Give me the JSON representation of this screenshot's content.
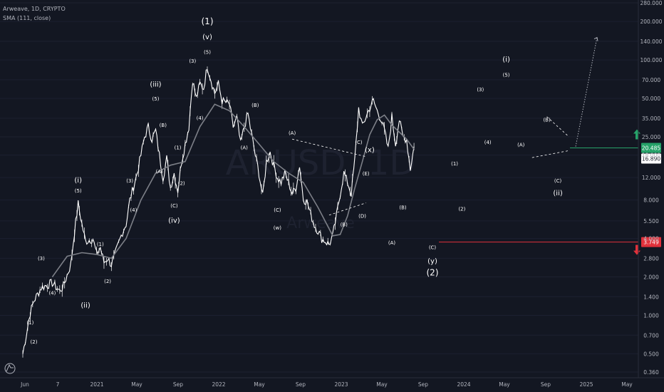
{
  "header": {
    "title": "Arweave, 1D, CRYPTO",
    "indicator": "SMA (111, close)"
  },
  "watermark": {
    "symbol": "ARUSD, 1D",
    "name": "Arweave"
  },
  "colors": {
    "background": "#131722",
    "candle": "#ffffff",
    "sma": "#7c7f87",
    "target_up": "#26a269",
    "target_down": "#e0313b",
    "price_label": "#ffffff"
  },
  "chart_data": {
    "type": "line",
    "scale": "log",
    "ylim": [
      0.36,
      280
    ],
    "y_ticks": [
      "280.000",
      "200.000",
      "140.000",
      "100.000",
      "70.000",
      "50.000",
      "35.000",
      "25.000",
      "18.000",
      "12.000",
      "8.000",
      "5.500",
      "4.000",
      "2.800",
      "2.000",
      "1.400",
      "1.000",
      "0.700",
      "0.500",
      "0.360"
    ],
    "x_ticks": [
      "Jun",
      "7",
      "2021",
      "May",
      "Sep",
      "2022",
      "May",
      "Sep",
      "2023",
      "May",
      "Sep",
      "2024",
      "May",
      "Sep",
      "2025",
      "May"
    ],
    "price_series": {
      "name": "Price",
      "points": [
        [
          0,
          0.5
        ],
        [
          2,
          1.05
        ],
        [
          3,
          1.3
        ],
        [
          5,
          1.65
        ],
        [
          8,
          1.8
        ],
        [
          10,
          1.55
        ],
        [
          11,
          1.7
        ],
        [
          13,
          2.5
        ],
        [
          14,
          4.5
        ],
        [
          15,
          7.5
        ],
        [
          16,
          5.2
        ],
        [
          17,
          3.8
        ],
        [
          19,
          4.0
        ],
        [
          20,
          3.0
        ],
        [
          21,
          3.4
        ],
        [
          22,
          2.6
        ],
        [
          23,
          2.8
        ],
        [
          24,
          2.5
        ],
        [
          25,
          3.0
        ],
        [
          27,
          4.5
        ],
        [
          28,
          5.2
        ],
        [
          29,
          8.0
        ],
        [
          31,
          13
        ],
        [
          33,
          25
        ],
        [
          34,
          30
        ],
        [
          35,
          24
        ],
        [
          36,
          28
        ],
        [
          37,
          18
        ],
        [
          38,
          12
        ],
        [
          39,
          17
        ],
        [
          40,
          10
        ],
        [
          41,
          13
        ],
        [
          42,
          9.5
        ],
        [
          43,
          16
        ],
        [
          45,
          30
        ],
        [
          46,
          70
        ],
        [
          47,
          50
        ],
        [
          48,
          65
        ],
        [
          49,
          60
        ],
        [
          50,
          90
        ],
        [
          51,
          70
        ],
        [
          52,
          55
        ],
        [
          53,
          65
        ],
        [
          54,
          48
        ],
        [
          56,
          45
        ],
        [
          57,
          30
        ],
        [
          58,
          35
        ],
        [
          59,
          22
        ],
        [
          60,
          30
        ],
        [
          61,
          38
        ],
        [
          62,
          26
        ],
        [
          63,
          18
        ],
        [
          64,
          13
        ],
        [
          65,
          8.5
        ],
        [
          66,
          16
        ],
        [
          67,
          19
        ],
        [
          68,
          15
        ],
        [
          69,
          12
        ],
        [
          70,
          11
        ],
        [
          71,
          13
        ],
        [
          72,
          11
        ],
        [
          73,
          9
        ],
        [
          74,
          10
        ],
        [
          75,
          15
        ],
        [
          76,
          8.2
        ],
        [
          77,
          7.8
        ],
        [
          78,
          6.2
        ],
        [
          79,
          5.1
        ],
        [
          80,
          4.6
        ],
        [
          81,
          4.0
        ],
        [
          82,
          3.8
        ],
        [
          83,
          3.6
        ],
        [
          84,
          4.2
        ],
        [
          85,
          6
        ],
        [
          86,
          9
        ],
        [
          87,
          13
        ],
        [
          88,
          11
        ],
        [
          89,
          9
        ],
        [
          90,
          17
        ],
        [
          91,
          42
        ],
        [
          92,
          30
        ],
        [
          93,
          36
        ],
        [
          94,
          42
        ],
        [
          95,
          48
        ],
        [
          96,
          40
        ],
        [
          97,
          35
        ],
        [
          98,
          28
        ],
        [
          99,
          20
        ],
        [
          100,
          36
        ],
        [
          101,
          22
        ],
        [
          102,
          34
        ],
        [
          103,
          25
        ],
        [
          104,
          24
        ],
        [
          105,
          14
        ],
        [
          106,
          21
        ]
      ]
    },
    "sma_series": {
      "name": "SMA (111, close)",
      "points": [
        [
          8,
          2.0
        ],
        [
          12,
          2.9
        ],
        [
          16,
          3.1
        ],
        [
          20,
          3.0
        ],
        [
          24,
          2.8
        ],
        [
          28,
          4.0
        ],
        [
          32,
          8
        ],
        [
          36,
          13
        ],
        [
          40,
          15
        ],
        [
          44,
          16
        ],
        [
          48,
          30
        ],
        [
          52,
          45
        ],
        [
          56,
          40
        ],
        [
          60,
          30
        ],
        [
          64,
          22
        ],
        [
          68,
          16
        ],
        [
          72,
          13
        ],
        [
          76,
          11
        ],
        [
          80,
          7
        ],
        [
          84,
          4.2
        ],
        [
          86,
          4.3
        ],
        [
          88,
          6
        ],
        [
          90,
          10
        ],
        [
          92,
          16
        ],
        [
          94,
          26
        ],
        [
          96,
          34
        ],
        [
          98,
          37
        ],
        [
          100,
          31
        ],
        [
          104,
          24
        ],
        [
          106,
          20
        ]
      ]
    },
    "projection": [
      [
        106,
        21
      ],
      [
        114,
        150
      ]
    ],
    "levels": [
      {
        "label": "20.485",
        "value": 20.485,
        "color": "#26a269",
        "arrow": "up"
      },
      {
        "label": "3.749",
        "value": 3.749,
        "color": "#e0313b",
        "arrow": "down"
      }
    ],
    "last_price": "16.890",
    "wave_labels": [
      {
        "t": "(1)",
        "i": 2,
        "v": 0.85
      },
      {
        "t": "(2)",
        "i": 3,
        "v": 0.6
      },
      {
        "t": "(3)",
        "i": 5,
        "v": 2.7
      },
      {
        "t": "(4)",
        "i": 8,
        "v": 1.45
      },
      {
        "t": "(i)",
        "i": 15,
        "v": 11
      },
      {
        "t": "(5)",
        "i": 15,
        "v": 9.2
      },
      {
        "t": "(ii)",
        "i": 17,
        "v": 1.15
      },
      {
        "t": "(1)",
        "i": 21,
        "v": 3.5
      },
      {
        "t": "(2)",
        "i": 23,
        "v": 1.8
      },
      {
        "t": "(3)",
        "i": 29,
        "v": 11
      },
      {
        "t": "(4)",
        "i": 30,
        "v": 6.5
      },
      {
        "t": "(iii)",
        "i": 36,
        "v": 62
      },
      {
        "t": "(5)",
        "i": 36,
        "v": 48
      },
      {
        "t": "(A)",
        "i": 37,
        "v": 13
      },
      {
        "t": "(B)",
        "i": 38,
        "v": 30
      },
      {
        "t": "(C)",
        "i": 41,
        "v": 7
      },
      {
        "t": "(iv)",
        "i": 41,
        "v": 5.3
      },
      {
        "t": "(1)",
        "i": 42,
        "v": 20
      },
      {
        "t": "(2)",
        "i": 43,
        "v": 10.5
      },
      {
        "t": "(3)",
        "i": 46,
        "v": 95
      },
      {
        "t": "(4)",
        "i": 48,
        "v": 34
      },
      {
        "t": "(1)",
        "i": 50,
        "v": 190
      },
      {
        "t": "(v)",
        "i": 50,
        "v": 145
      },
      {
        "t": "(5)",
        "i": 50,
        "v": 112
      },
      {
        "t": "(B)",
        "i": 63,
        "v": 43
      },
      {
        "t": "(A)",
        "i": 60,
        "v": 20
      },
      {
        "t": "(A)",
        "i": 73,
        "v": 26
      },
      {
        "t": "(C)",
        "i": 69,
        "v": 6.5
      },
      {
        "t": "(w)",
        "i": 69,
        "v": 4.7
      },
      {
        "t": "(C)",
        "i": 91,
        "v": 22
      },
      {
        "t": "(x)",
        "i": 94,
        "v": 19
      },
      {
        "t": "(E)",
        "i": 93,
        "v": 12.5
      },
      {
        "t": "(B)",
        "i": 87,
        "v": 5.0
      },
      {
        "t": "(D)",
        "i": 92,
        "v": 5.8
      },
      {
        "t": "(B)",
        "i": 103,
        "v": 6.8
      },
      {
        "t": "(A)",
        "i": 100,
        "v": 3.6
      },
      {
        "t": "(C)",
        "i": 111,
        "v": 3.3
      },
      {
        "t": "(y)",
        "i": 111,
        "v": 2.55
      },
      {
        "t": "(2)",
        "i": 111,
        "v": 2.05
      },
      {
        "t": "(1)",
        "i": 117,
        "v": 15
      },
      {
        "t": "(2)",
        "i": 119,
        "v": 6.6
      },
      {
        "t": "(3)",
        "i": 124,
        "v": 57
      },
      {
        "t": "(4)",
        "i": 126,
        "v": 22
      },
      {
        "t": "(i)",
        "i": 131,
        "v": 97
      },
      {
        "t": "(5)",
        "i": 131,
        "v": 74
      },
      {
        "t": "(A)",
        "i": 135,
        "v": 21
      },
      {
        "t": "(B)",
        "i": 142,
        "v": 33
      },
      {
        "t": "(C)",
        "i": 145,
        "v": 11
      },
      {
        "t": "(ii)",
        "i": 145,
        "v": 8.7
      }
    ]
  }
}
